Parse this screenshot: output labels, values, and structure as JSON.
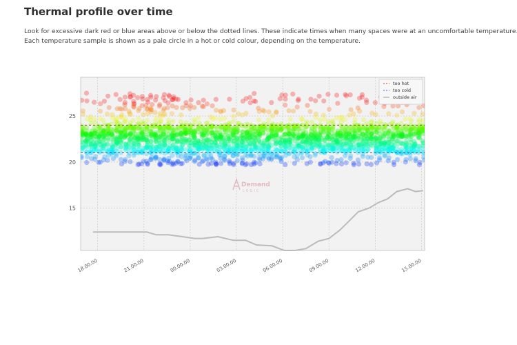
{
  "page": {
    "title": "Thermal profile over time",
    "description_line1": "Look for excessive dark red or blue areas above or below the dotted lines. These indicate times when many spaces were at an uncomfortable temperature.",
    "description_line2": "Each temperature sample is shown as a pale circle in a hot or cold colour, depending on the temperature."
  },
  "watermark": {
    "text_main": "Demand",
    "text_sub": "LOGIC",
    "color": "#d98a96"
  },
  "chart_data": {
    "type": "scatter",
    "title": "",
    "xlabel": "",
    "ylabel": "",
    "x_tick_labels": [
      "18.00.00",
      "21.00.00",
      "00.00.00",
      "03.00.00",
      "06.00.00",
      "09.00.00",
      "12.00.00",
      "15.00.00"
    ],
    "x_tick_hours": [
      18,
      21,
      24,
      27,
      30,
      33,
      36,
      39
    ],
    "xlim_hours": [
      16.9,
      39.2
    ],
    "y_ticks": [
      15,
      20,
      25
    ],
    "ylim": [
      10.4,
      29.2
    ],
    "grid": true,
    "legend_position": "top-right",
    "reference_lines": {
      "too_hot": 24,
      "too_cold": 21
    },
    "colors": {
      "too_hot": "#e8736f",
      "too_cold": "#8a8ef0",
      "outside_air": "#bbbbbb",
      "plot_bg": "#f2f2f2"
    },
    "series": [
      {
        "name": "too hot",
        "kind": "dashed-line"
      },
      {
        "name": "too cold",
        "kind": "dashed-line"
      },
      {
        "name": "outside air",
        "kind": "line",
        "x": [
          17.7,
          18.8,
          19.8,
          21.2,
          21.8,
          22.6,
          23.5,
          24.3,
          24.8,
          25.8,
          26.8,
          27.6,
          28.3,
          29.3,
          30.1,
          30.8,
          31.5,
          32.3,
          33.0,
          33.7,
          34.3,
          34.9,
          35.6,
          36.2,
          36.8,
          37.4,
          38.1,
          38.6,
          39.1
        ],
        "y": [
          12.4,
          12.4,
          12.4,
          12.4,
          12.1,
          12.1,
          11.9,
          11.7,
          11.7,
          11.9,
          11.5,
          11.5,
          11.0,
          10.9,
          10.4,
          10.4,
          10.6,
          11.4,
          11.7,
          12.6,
          13.6,
          14.6,
          15.0,
          15.6,
          16.0,
          16.8,
          17.1,
          16.8,
          16.9
        ]
      }
    ],
    "samples_spread": {
      "low": [
        19,
        21
      ],
      "core": [
        21,
        24
      ],
      "high": [
        24,
        27.5
      ]
    }
  }
}
